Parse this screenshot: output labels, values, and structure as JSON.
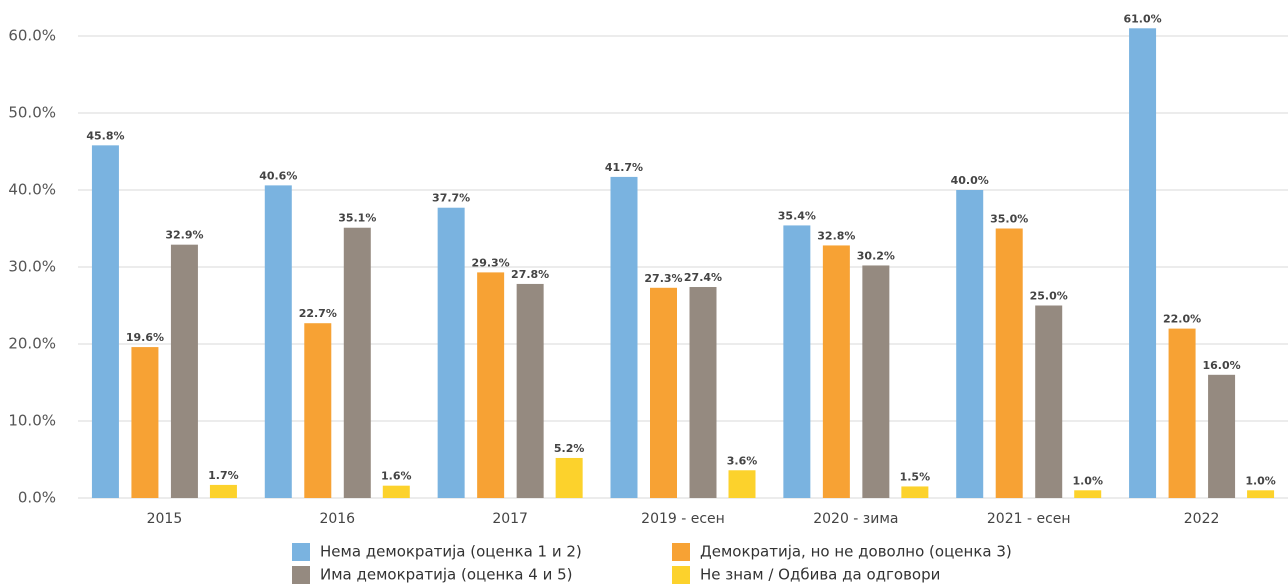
{
  "chart_data": {
    "type": "bar",
    "categories": [
      "2015",
      "2016",
      "2017",
      "2019 - есен",
      "2020 - зима",
      "2021 - есен",
      "2022"
    ],
    "series": [
      {
        "name": "Нема демократија (оценка 1 и 2)",
        "color": "#7ab3e0",
        "values": [
          45.8,
          40.6,
          37.7,
          41.7,
          35.4,
          40.0,
          61.0
        ],
        "value_labels": [
          "45.8%",
          "40.6%",
          "37.7%",
          "41.7%",
          "35.4%",
          "40.0%",
          "61.0%"
        ]
      },
      {
        "name": "Демократија, но не доволно (оценка 3)",
        "color": "#f7a234",
        "values": [
          19.6,
          22.7,
          29.3,
          27.3,
          32.8,
          35.0,
          22.0
        ],
        "value_labels": [
          "19.6%",
          "22.7%",
          "29.3%",
          "27.3%",
          "32.8%",
          "35.0%",
          "22.0%"
        ]
      },
      {
        "name": "Има демократија (оценка 4 и 5)",
        "color": "#958a80",
        "values": [
          32.9,
          35.1,
          27.8,
          27.4,
          30.2,
          25.0,
          16.0
        ],
        "value_labels": [
          "32.9%",
          "35.1%",
          "27.8%",
          "27.4%",
          "30.2%",
          "25.0%",
          "16.0%"
        ]
      },
      {
        "name": "Не знам / Одбива да одговори",
        "color": "#fcd22c",
        "values": [
          1.7,
          1.6,
          5.2,
          3.6,
          1.5,
          1.0,
          1.0
        ],
        "value_labels": [
          "1.7%",
          "1.6%",
          "5.2%",
          "3.6%",
          "1.5%",
          "1.0%",
          "1.0%"
        ]
      }
    ],
    "ylim": [
      0,
      64
    ],
    "yticks": [
      {
        "value": 0,
        "label": "0.0%"
      },
      {
        "value": 10,
        "label": "10.0%"
      },
      {
        "value": 20,
        "label": "20.0%"
      },
      {
        "value": 30,
        "label": "30.0%"
      },
      {
        "value": 40,
        "label": "40.0%"
      },
      {
        "value": 50,
        "label": "50.0%"
      },
      {
        "value": 60,
        "label": "60.0%"
      }
    ],
    "grid": true
  }
}
